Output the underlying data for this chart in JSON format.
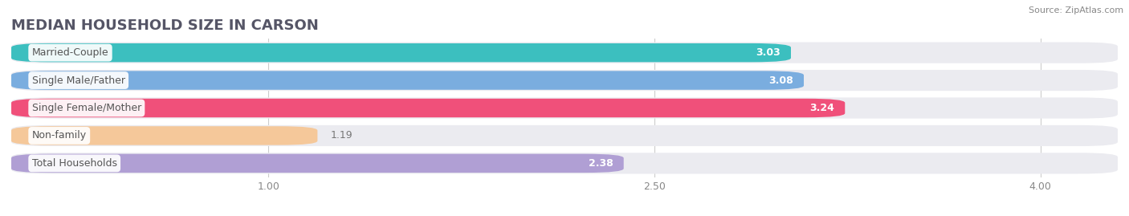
{
  "title": "MEDIAN HOUSEHOLD SIZE IN CARSON",
  "source": "Source: ZipAtlas.com",
  "categories": [
    "Married-Couple",
    "Single Male/Father",
    "Single Female/Mother",
    "Non-family",
    "Total Households"
  ],
  "values": [
    3.03,
    3.08,
    3.24,
    1.19,
    2.38
  ],
  "bar_colors": [
    "#3cbfbf",
    "#7aaddf",
    "#f0507a",
    "#f5c89a",
    "#b09fd4"
  ],
  "value_colors": [
    "white",
    "white",
    "white",
    "#888888",
    "#888888"
  ],
  "xmin": 0.0,
  "xmax": 4.3,
  "xlim_display": [
    0.5,
    4.3
  ],
  "xticks": [
    1.0,
    2.5,
    4.0
  ],
  "background_color": "#ffffff",
  "bar_bg_color": "#ebebf0",
  "row_bg_color": "#f5f5f8",
  "title_fontsize": 13,
  "label_fontsize": 9,
  "value_fontsize": 9
}
